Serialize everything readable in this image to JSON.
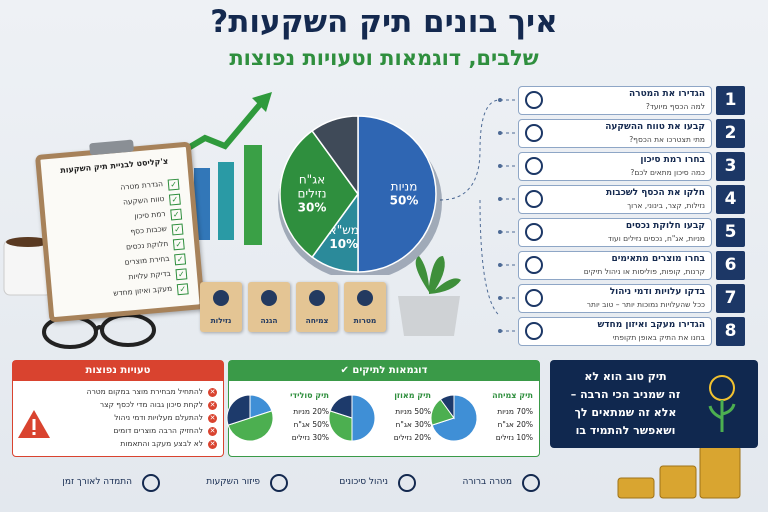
{
  "header": {
    "title": "איך בונים תיק השקעות?",
    "subtitle": "שלבים, דוגמאות וטעויות נפוצות"
  },
  "steps": [
    {
      "number": 1,
      "title": "הגדירו את המטרה",
      "subtitle": "למה הכסף מיועד?"
    },
    {
      "number": 2,
      "title": "קבעו את טווח ההשקעה",
      "subtitle": "מתי תצטרכו את הכסף?"
    },
    {
      "number": 3,
      "title": "בחרו רמת סיכון",
      "subtitle": "כמה סיכון מתאים לכם?"
    },
    {
      "number": 4,
      "title": "חלקו את הכסף לשכבות",
      "subtitle": "נזילות, קצר, בינוני, ארוך"
    },
    {
      "number": 5,
      "title": "קבעו חלוקת נכסים",
      "subtitle": "מניות, אג\"ח, נכסים נזילים ועוד"
    },
    {
      "number": 6,
      "title": "בחרו מוצרים מתאימים",
      "subtitle": "קרנות, קופות, פוליסות או ניהול תיקים"
    },
    {
      "number": 7,
      "title": "בדקו עלויות ודמי ניהול",
      "subtitle": "ככל שהעלויות נמוכות יותר – טוב יותר"
    },
    {
      "number": 8,
      "title": "הגדירו מעקב ואיזון מחדש",
      "subtitle": "בחנו את התיק באופן תקופתי"
    }
  ],
  "checklist": {
    "title": "צ'קליסט לבניית תיק השקעות",
    "items": [
      "הגדרת מטרה",
      "טווח השקעה",
      "רמת סיכון",
      "שכבות כסף",
      "חלוקת נכסים",
      "בחירת מוצרים",
      "בדיקת עלויות",
      "מעקב ואיזון מחדש"
    ]
  },
  "pie": {
    "slices": [
      {
        "label": [
          "מניות"
        ],
        "value": 50,
        "value_label": "50%",
        "color": "#2f66b3"
      },
      {
        "label": [
          "מש\"א"
        ],
        "value": 10,
        "value_label": "10%",
        "color": "#2b8a9a"
      },
      {
        "label": [
          "אג\"ח",
          "נזילים"
        ],
        "value": 30,
        "value_label": "30%",
        "color": "#2f8f3e"
      },
      {
        "label": null,
        "value": 10,
        "color": "#3f4a58"
      }
    ]
  },
  "blocks": [
    "נזילות",
    "הגנה",
    "צמיחה",
    "מטרות"
  ],
  "mistakes": {
    "title": "טעויות נפוצות",
    "items": [
      "להתחיל מבחירת מוצר במקום מטרה",
      "לקחת סיכון גבוה מדי לכסף קצר",
      "להתעלם מעלויות ודמי ניהול",
      "להחזיק הרבה מוצרים דומים",
      "לא לבצע מעקב והתאמות"
    ]
  },
  "examples": {
    "title": "דוגמאות לתיקים",
    "colors": [
      "#3f8fd6",
      "#4caf50",
      "#1d3a6b"
    ],
    "portfolios": [
      {
        "name": "תיק צמיחה",
        "rows": [
          {
            "value": 70,
            "label": "70% מניות"
          },
          {
            "value": 20,
            "label": "20% אג\"ח"
          },
          {
            "value": 10,
            "label": "10% נזילים"
          }
        ]
      },
      {
        "name": "תיק מאוזן",
        "rows": [
          {
            "value": 50,
            "label": "50% מניות"
          },
          {
            "value": 30,
            "label": "30% אג\"ח"
          },
          {
            "value": 20,
            "label": "20% נזילים"
          }
        ]
      },
      {
        "name": "תיק סולידי",
        "rows": [
          {
            "value": 20,
            "label": "20% מניות"
          },
          {
            "value": 50,
            "label": "50% אג\"ח"
          },
          {
            "value": 30,
            "label": "30% נזילים"
          }
        ]
      }
    ]
  },
  "tip": {
    "lines": [
      "תיק טוב הוא לא",
      "זה שמניב הכי הרבה –",
      "אלא זה שמתאים לך",
      "ושאפשר להתמיד בו"
    ]
  },
  "footer": {
    "items": [
      "מטרה ברורה",
      "ניהול סיכונים",
      "פיזור השקעות",
      "התמדה לאורך זמן"
    ]
  }
}
